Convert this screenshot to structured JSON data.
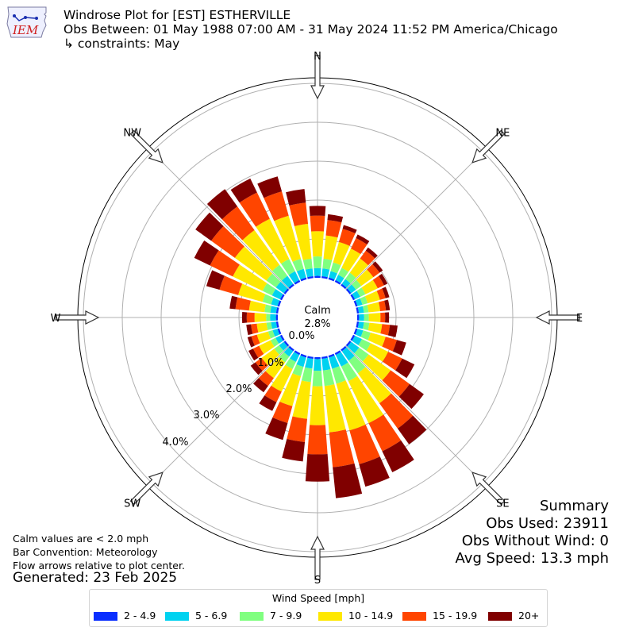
{
  "header": {
    "title": "Windrose Plot for [EST] ESTHERVILLE",
    "obs_between": "Obs Between: 01 May 1988 07:00 AM - 31 May 2024 11:52 PM America/Chicago",
    "constraints": "↳ constraints: May",
    "logo_text": "IEM"
  },
  "notes": {
    "calm_note": "Calm values are < 2.0 mph",
    "bar_convention": "Bar Convention: Meteorology",
    "flow_arrows": "Flow arrows relative to plot center.",
    "generated": "Generated: 23 Feb 2025"
  },
  "summary": {
    "heading": "Summary",
    "obs_used": "Obs Used: 23911",
    "obs_without_wind": "Obs Without Wind: 0",
    "avg_speed": "Avg Speed: 13.3 mph"
  },
  "chart_data": {
    "type": "windrose",
    "calm_label": "Calm",
    "calm_value": "2.8%",
    "radial_tick_labels": [
      "0.0%",
      "1.0%",
      "2.0%",
      "3.0%",
      "4.0%"
    ],
    "radial_ticks": [
      0,
      1,
      2,
      3,
      4
    ],
    "direction_labels": [
      "N",
      "NE",
      "E",
      "SE",
      "S",
      "SW",
      "W",
      "NW"
    ],
    "legend_title": "Wind Speed [mph]",
    "bins": [
      {
        "label": "2 - 4.9",
        "color": "#0a2eff"
      },
      {
        "label": "5 - 6.9",
        "color": "#00d2f0"
      },
      {
        "label": "7 - 9.9",
        "color": "#80ff80"
      },
      {
        "label": "10 - 14.9",
        "color": "#ffe800"
      },
      {
        "label": "15 - 19.9",
        "color": "#ff4500"
      },
      {
        "label": "20+",
        "color": "#800000"
      }
    ],
    "directions_deg": [
      0,
      10,
      20,
      30,
      40,
      50,
      60,
      70,
      80,
      90,
      100,
      110,
      120,
      130,
      140,
      150,
      160,
      170,
      180,
      190,
      200,
      210,
      220,
      230,
      240,
      250,
      260,
      270,
      280,
      290,
      300,
      310,
      320,
      330,
      340,
      350
    ],
    "cumulative_percent": [
      [
        0.05,
        0.25,
        0.55,
        1.2,
        1.6,
        1.85
      ],
      [
        0.05,
        0.25,
        0.5,
        1.1,
        1.5,
        1.65
      ],
      [
        0.05,
        0.22,
        0.45,
        1.0,
        1.35,
        1.45
      ],
      [
        0.05,
        0.2,
        0.4,
        0.95,
        1.25,
        1.35
      ],
      [
        0.05,
        0.2,
        0.4,
        0.85,
        1.1,
        1.2
      ],
      [
        0.05,
        0.2,
        0.37,
        0.75,
        0.95,
        1.05
      ],
      [
        0.05,
        0.2,
        0.35,
        0.7,
        0.88,
        0.98
      ],
      [
        0.05,
        0.18,
        0.32,
        0.65,
        0.8,
        0.9
      ],
      [
        0.05,
        0.18,
        0.3,
        0.6,
        0.75,
        0.85
      ],
      [
        0.05,
        0.18,
        0.3,
        0.6,
        0.72,
        0.82
      ],
      [
        0.05,
        0.18,
        0.32,
        0.65,
        0.85,
        1.05
      ],
      [
        0.05,
        0.2,
        0.4,
        0.8,
        1.1,
        1.35
      ],
      [
        0.05,
        0.25,
        0.5,
        1.0,
        1.4,
        1.75
      ],
      [
        0.05,
        0.3,
        0.6,
        1.3,
        1.9,
        2.35
      ],
      [
        0.05,
        0.35,
        0.75,
        1.7,
        2.5,
        3.0
      ],
      [
        0.05,
        0.38,
        0.8,
        2.0,
        2.8,
        3.4
      ],
      [
        0.05,
        0.35,
        0.75,
        2.0,
        2.9,
        3.5
      ],
      [
        0.05,
        0.35,
        0.75,
        1.95,
        2.85,
        3.65
      ],
      [
        0.05,
        0.35,
        0.75,
        1.75,
        2.5,
        3.2
      ],
      [
        0.05,
        0.3,
        0.65,
        1.6,
        2.2,
        2.7
      ],
      [
        0.05,
        0.3,
        0.55,
        1.35,
        1.8,
        2.25
      ],
      [
        0.05,
        0.25,
        0.45,
        1.1,
        1.4,
        1.65
      ],
      [
        0.05,
        0.22,
        0.4,
        0.9,
        1.15,
        1.35
      ],
      [
        0.05,
        0.2,
        0.35,
        0.75,
        0.95,
        1.1
      ],
      [
        0.05,
        0.18,
        0.32,
        0.65,
        0.82,
        0.95
      ],
      [
        0.05,
        0.18,
        0.3,
        0.6,
        0.75,
        0.85
      ],
      [
        0.05,
        0.18,
        0.3,
        0.55,
        0.7,
        0.82
      ],
      [
        0.05,
        0.2,
        0.3,
        0.6,
        0.8,
        0.92
      ],
      [
        0.05,
        0.2,
        0.35,
        0.75,
        1.1,
        1.25
      ],
      [
        0.05,
        0.22,
        0.45,
        1.1,
        1.6,
        1.95
      ],
      [
        0.05,
        0.28,
        0.55,
        1.4,
        2.05,
        2.5
      ],
      [
        0.05,
        0.3,
        0.6,
        1.6,
        2.35,
        2.85
      ],
      [
        0.05,
        0.3,
        0.65,
        1.75,
        2.5,
        3.05
      ],
      [
        0.05,
        0.3,
        0.65,
        1.8,
        2.55,
        2.95
      ],
      [
        0.05,
        0.28,
        0.55,
        1.7,
        2.35,
        2.75
      ],
      [
        0.05,
        0.25,
        0.5,
        1.4,
        1.95,
        2.3
      ]
    ]
  }
}
